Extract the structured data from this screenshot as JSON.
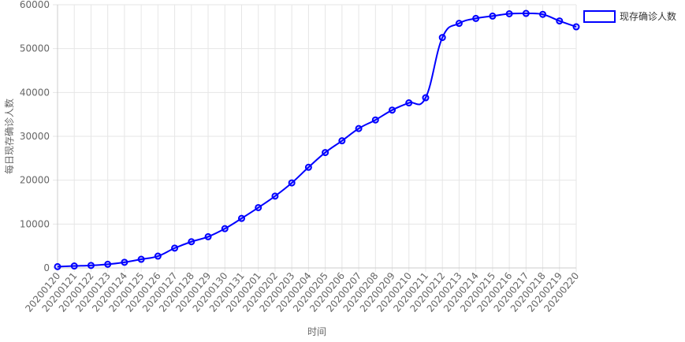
{
  "chart_data": {
    "type": "line",
    "x_label": "时间",
    "y_label": "每日现存确诊人数",
    "categories": [
      "20200120",
      "20200121",
      "20200122",
      "20200123",
      "20200124",
      "20200125",
      "20200126",
      "20200127",
      "20200128",
      "20200129",
      "20200130",
      "20200131",
      "20200201",
      "20200202",
      "20200203",
      "20200204",
      "20200205",
      "20200206",
      "20200207",
      "20200208",
      "20200209",
      "20200210",
      "20200211",
      "20200212",
      "20200213",
      "20200214",
      "20200215",
      "20200216",
      "20200217",
      "20200218",
      "20200219",
      "20200220"
    ],
    "series": [
      {
        "name": "现存确诊人数",
        "color": "#0000ff",
        "values": [
          291,
          440,
          571,
          830,
          1287,
          1975,
          2684,
          4515,
          5974,
          7111,
          8949,
          11289,
          13748,
          16369,
          19381,
          22942,
          26302,
          28985,
          31774,
          33738,
          35982,
          37626,
          38800,
          52526,
          55748,
          56873,
          57416,
          57934,
          58016,
          57805,
          56303,
          54965
        ]
      }
    ],
    "ylim": [
      0,
      60000
    ],
    "yticks": [
      0,
      10000,
      20000,
      30000,
      40000,
      50000,
      60000
    ],
    "grid": true,
    "legend": "right"
  }
}
